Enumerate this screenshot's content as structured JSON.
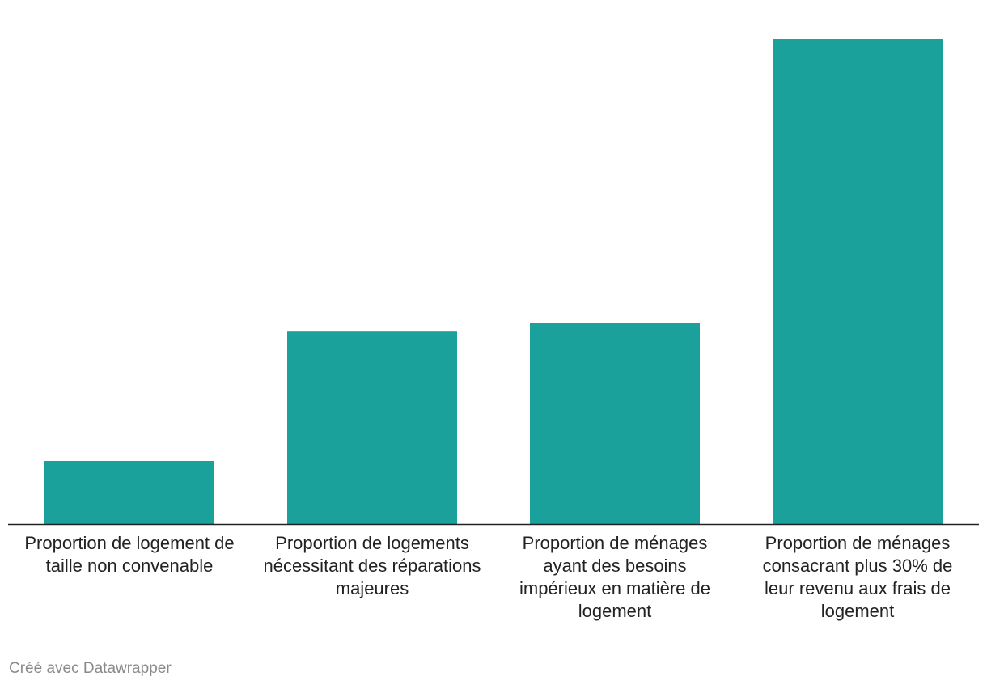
{
  "chart_data": {
    "type": "bar",
    "title": "",
    "xlabel": "",
    "ylabel": "",
    "categories": [
      "Proportion de logement de taille non convenable",
      "Proportion de logements nécessitant des réparations majeures",
      "Proportion de ménages ayant des besoins impérieux en matière de logement",
      "Proportion de ménages consacrant plus 30% de leur revenu aux frais de logement"
    ],
    "values": [
      6.5,
      19.9,
      20.7,
      50.0
    ],
    "ylim": [
      0,
      50
    ],
    "grid": false,
    "legend": "none",
    "bar_color": "#1aa19c",
    "axis_color": "#222222"
  },
  "footer": {
    "credit": "Créé avec Datawrapper"
  }
}
